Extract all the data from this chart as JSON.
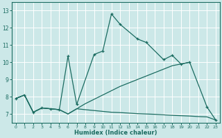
{
  "xlabel": "Humidex (Indice chaleur)",
  "bg_color": "#cce8e8",
  "grid_color": "#b0d8d8",
  "line_color": "#1a6b60",
  "xlim": [
    -0.5,
    23.5
  ],
  "ylim": [
    6.5,
    13.5
  ],
  "xticks": [
    0,
    1,
    2,
    3,
    4,
    5,
    6,
    7,
    8,
    9,
    10,
    11,
    12,
    13,
    14,
    15,
    16,
    17,
    18,
    19,
    20,
    21,
    22,
    23
  ],
  "yticks": [
    7,
    8,
    9,
    10,
    11,
    12,
    13
  ],
  "line1_x": [
    0,
    1,
    2,
    3,
    4,
    5,
    6,
    7,
    8,
    9,
    10,
    11,
    12,
    13,
    14,
    15,
    16,
    17,
    18,
    19,
    20,
    21,
    22,
    23
  ],
  "line1_y": [
    7.9,
    8.1,
    7.1,
    7.35,
    7.3,
    7.25,
    7.0,
    7.3,
    7.25,
    7.2,
    7.15,
    7.1,
    7.08,
    7.05,
    7.02,
    7.0,
    6.98,
    6.95,
    6.92,
    6.9,
    6.88,
    6.85,
    6.83,
    6.65
  ],
  "line2_x": [
    0,
    1,
    2,
    3,
    4,
    5,
    6,
    7,
    8,
    9,
    10,
    11,
    12,
    13,
    14,
    15,
    16,
    17,
    18,
    19,
    20
  ],
  "line2_y": [
    7.9,
    8.1,
    7.1,
    7.35,
    7.3,
    7.25,
    7.0,
    7.3,
    7.6,
    7.85,
    8.1,
    8.35,
    8.6,
    8.8,
    9.0,
    9.2,
    9.4,
    9.6,
    9.8,
    9.9,
    10.0
  ],
  "line3_x": [
    0,
    1,
    2,
    3,
    4,
    5,
    6,
    7,
    9,
    10,
    11,
    12,
    14,
    15,
    17,
    18,
    19,
    20,
    22,
    23
  ],
  "line3_y": [
    7.9,
    8.1,
    7.1,
    7.35,
    7.3,
    7.25,
    10.35,
    7.55,
    10.45,
    10.65,
    12.8,
    12.2,
    11.35,
    11.15,
    10.15,
    10.4,
    9.9,
    10.0,
    7.4,
    6.65
  ]
}
